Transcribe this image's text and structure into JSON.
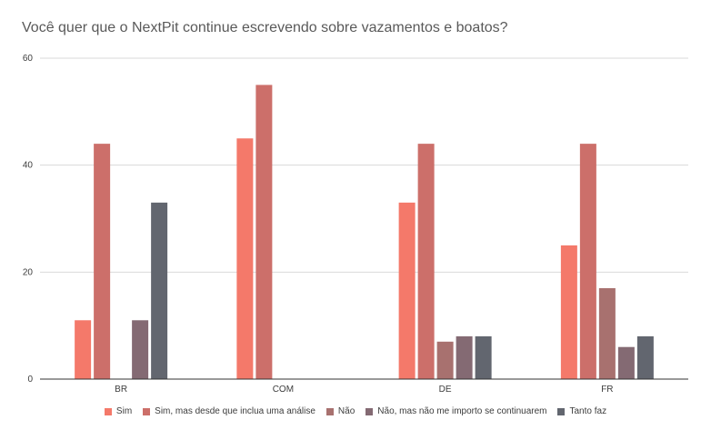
{
  "chart_data": {
    "type": "bar",
    "title": "Você quer que o NextPit continue escrevendo sobre vazamentos e boatos?",
    "xlabel": "",
    "ylabel": "",
    "categories": [
      "BR",
      "COM",
      "DE",
      "FR"
    ],
    "series": [
      {
        "name": "Sim",
        "color": "#f4796a",
        "values": [
          11,
          45,
          33,
          25
        ]
      },
      {
        "name": "Sim, mas desde que inclua uma análise",
        "color": "#cc6f6a",
        "values": [
          44,
          55,
          44,
          44
        ]
      },
      {
        "name": "Não",
        "color": "#a8716f",
        "values": [
          0,
          0,
          7,
          17
        ]
      },
      {
        "name": "Não, mas não me importo se continuarem",
        "color": "#846a73",
        "values": [
          11,
          0,
          8,
          6
        ]
      },
      {
        "name": "Tanto faz",
        "color": "#62666f",
        "values": [
          33,
          0,
          8,
          8
        ]
      }
    ],
    "ylim": [
      0,
      60
    ],
    "yticks": [
      0,
      20,
      40,
      60
    ],
    "grid": true,
    "legend_position": "bottom"
  }
}
